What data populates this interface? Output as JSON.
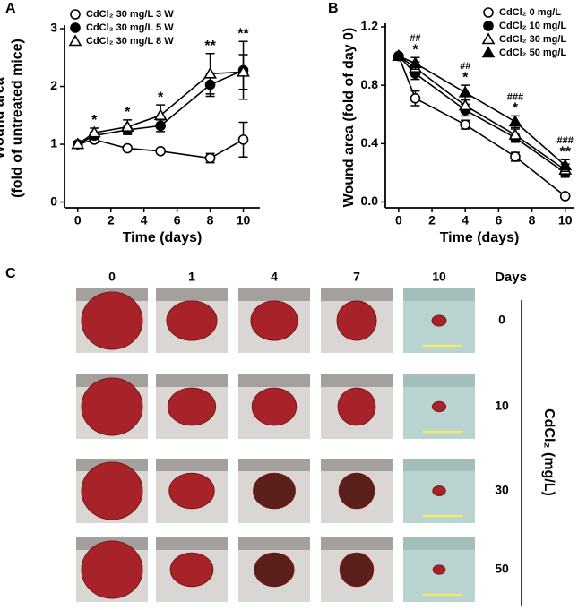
{
  "chart_data": [
    {
      "type": "line",
      "panel": "A",
      "xlabel": "Time (days)",
      "ylabel": [
        "Wound area",
        "(fold of untreated mice)"
      ],
      "x": [
        0,
        1,
        3,
        5,
        8,
        10
      ],
      "xlim": [
        -0.8,
        11
      ],
      "xticks": [
        0,
        2,
        4,
        6,
        8,
        10
      ],
      "ylim": [
        -0.1,
        3
      ],
      "yticks": [
        0,
        1,
        2,
        3
      ],
      "legend": "upper left",
      "series": [
        {
          "name": "CdCl₂ 30 mg/L 3 W",
          "color": "#000000",
          "marker": "circle-open",
          "values": [
            1.0,
            1.08,
            0.93,
            0.88,
            0.76,
            1.08
          ],
          "errors": [
            0.04,
            0.05,
            0.04,
            0.03,
            0.08,
            0.3
          ]
        },
        {
          "name": "CdCl₂ 30 mg/L 5 W",
          "color": "#000000",
          "marker": "circle-filled",
          "values": [
            1.0,
            1.15,
            1.25,
            1.32,
            2.03,
            2.28
          ],
          "errors": [
            0.05,
            0.06,
            0.08,
            0.1,
            0.2,
            0.5
          ]
        },
        {
          "name": "CdCl₂ 30 mg/L 8 W",
          "color": "#000000",
          "marker": "triangle-open",
          "values": [
            1.0,
            1.2,
            1.3,
            1.5,
            2.22,
            2.25
          ],
          "errors": [
            0.05,
            0.08,
            0.12,
            0.18,
            0.35,
            0.3
          ]
        }
      ],
      "annotations": [
        {
          "x": 1,
          "text": [
            "*"
          ]
        },
        {
          "x": 3,
          "text": [
            "*"
          ]
        },
        {
          "x": 5,
          "text": [
            "*"
          ]
        },
        {
          "x": 8,
          "text": [
            "**"
          ]
        },
        {
          "x": 10,
          "text": [
            "**"
          ]
        }
      ]
    },
    {
      "type": "line",
      "panel": "B",
      "xlabel": "Time (days)",
      "ylabel": [
        "Wound area (fold of day 0)"
      ],
      "x": [
        0,
        1,
        4,
        7,
        10
      ],
      "xlim": [
        -0.8,
        10.5
      ],
      "xticks": [
        0,
        2,
        4,
        6,
        8,
        10
      ],
      "ylim": [
        -0.04,
        1.2
      ],
      "yticks": [
        {
          "value": 0,
          "label": "0.0"
        },
        0.4,
        0.8,
        1.2
      ],
      "legend": "upper right",
      "series": [
        {
          "name": "CdCl₂ 0 mg/L",
          "color": "#000000",
          "marker": "circle-open",
          "values": [
            1.0,
            0.71,
            0.53,
            0.31,
            0.04
          ],
          "errors": [
            0.01,
            0.05,
            0.03,
            0.03,
            0.01
          ]
        },
        {
          "name": "CdCl₂ 10 mg/L",
          "color": "#000000",
          "marker": "circle-filled",
          "values": [
            1.0,
            0.88,
            0.63,
            0.44,
            0.2
          ],
          "errors": [
            0.01,
            0.04,
            0.04,
            0.03,
            0.03
          ]
        },
        {
          "name": "CdCl₂ 30 mg/L",
          "color": "#000000",
          "marker": "triangle-open",
          "values": [
            1.0,
            0.92,
            0.66,
            0.46,
            0.22
          ],
          "errors": [
            0.01,
            0.04,
            0.04,
            0.04,
            0.04
          ]
        },
        {
          "name": "CdCl₂ 50 mg/L",
          "color": "#000000",
          "marker": "triangle-filled",
          "values": [
            1.0,
            0.95,
            0.75,
            0.55,
            0.25
          ],
          "errors": [
            0.01,
            0.04,
            0.05,
            0.04,
            0.04
          ]
        }
      ],
      "annotations": [
        {
          "x": 1,
          "text": [
            "##",
            "*"
          ]
        },
        {
          "x": 4,
          "text": [
            "##",
            "*"
          ]
        },
        {
          "x": 7,
          "text": [
            "###",
            "*"
          ]
        },
        {
          "x": 10,
          "text": [
            "###",
            "**"
          ]
        }
      ]
    }
  ],
  "photos": {
    "panel": "C",
    "columns": [
      "0",
      "1",
      "4",
      "7",
      "10"
    ],
    "column_title": "Days",
    "rows": [
      "0",
      "10",
      "30",
      "50"
    ],
    "row_title": "CdCl₂ (mg/L)"
  }
}
